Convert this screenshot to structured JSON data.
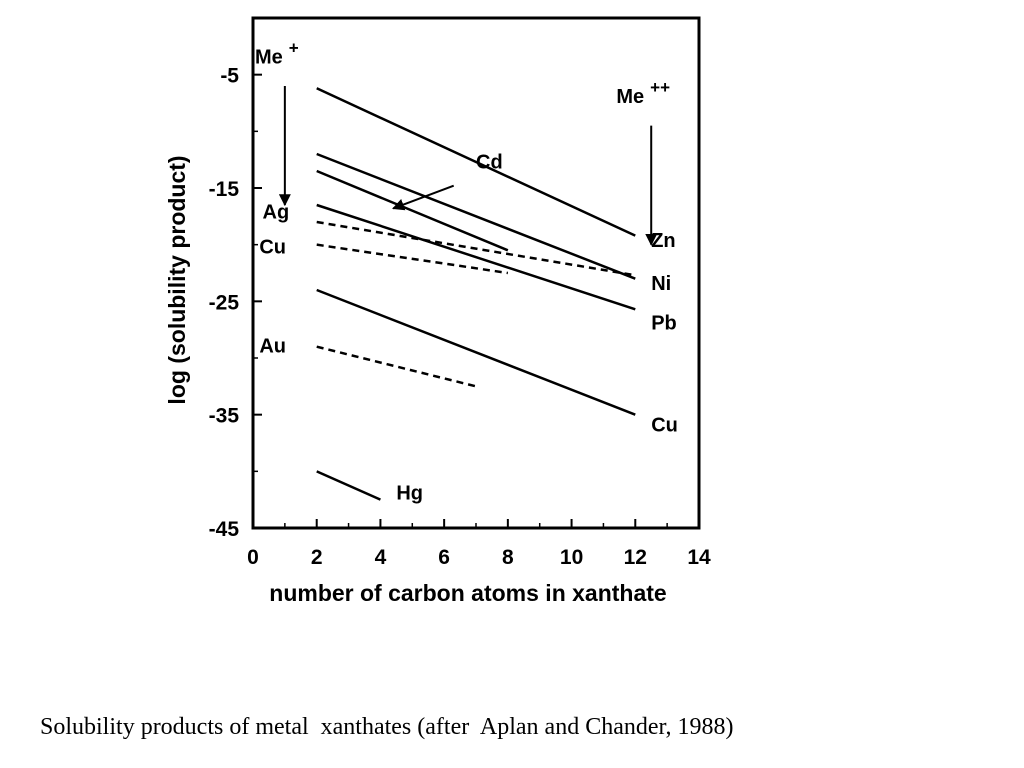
{
  "chart_data": {
    "type": "line",
    "xlabel": "number of carbon atoms in xanthate",
    "ylabel": "log (solubility product)",
    "xlim": [
      0,
      14
    ],
    "ylim": [
      -45,
      0
    ],
    "xticks": [
      0,
      2,
      4,
      6,
      8,
      10,
      12,
      14
    ],
    "yticks": [
      -5,
      -15,
      -25,
      -35,
      -45
    ],
    "grid": false,
    "group_labels": [
      {
        "id": "me1",
        "text": "Me",
        "sup": "+",
        "x": 1.0,
        "y": -4.0,
        "arrow": {
          "from": -6.0,
          "to": -16.5
        }
      },
      {
        "id": "me2",
        "text": "Me",
        "sup": "++",
        "x": 12.5,
        "y": -7.5,
        "arrow": {
          "from": -9.5,
          "to": -20.0
        }
      }
    ],
    "series": [
      {
        "name": "Zn",
        "style": "solid",
        "points": [
          [
            2,
            -6.2
          ],
          [
            12,
            -19.2
          ]
        ],
        "label_at": [
          12.5,
          -20.2
        ]
      },
      {
        "name": "Ni",
        "style": "solid",
        "points": [
          [
            2,
            -12.0
          ],
          [
            12,
            -23.0
          ]
        ],
        "label_at": [
          12.5,
          -24.0
        ]
      },
      {
        "name": "Cd",
        "style": "solid",
        "points": [
          [
            2,
            -13.5
          ],
          [
            8,
            -20.5
          ]
        ],
        "label_at": [
          7.0,
          -13.3
        ],
        "arrow": {
          "from": [
            6.3,
            -14.8
          ],
          "to": [
            4.4,
            -16.8
          ]
        }
      },
      {
        "name": "Pb",
        "style": "solid",
        "points": [
          [
            2,
            -16.5
          ],
          [
            12,
            -25.7
          ]
        ],
        "label_at": [
          12.5,
          -27.5
        ]
      },
      {
        "name": "Ag",
        "style": "dashed",
        "points": [
          [
            2,
            -18.0
          ],
          [
            12,
            -22.7
          ]
        ],
        "label_at": [
          0.3,
          -17.7
        ]
      },
      {
        "name": "Cu",
        "style": "dashed",
        "points": [
          [
            2,
            -20.0
          ],
          [
            8,
            -22.5
          ]
        ],
        "label_at": [
          0.2,
          -20.8
        ]
      },
      {
        "name": "Cu",
        "style": "solid",
        "points": [
          [
            2,
            -24.0
          ],
          [
            12,
            -35.0
          ]
        ],
        "label_at": [
          12.5,
          -36.5
        ]
      },
      {
        "name": "Au",
        "style": "dashed",
        "points": [
          [
            2,
            -29.0
          ],
          [
            7,
            -32.5
          ]
        ],
        "label_at": [
          0.2,
          -29.5
        ]
      },
      {
        "name": "Hg",
        "style": "solid",
        "points": [
          [
            2,
            -40.0
          ],
          [
            4,
            -42.5
          ]
        ],
        "label_at": [
          4.5,
          -42.5
        ]
      }
    ]
  },
  "caption": "Solubility products of metal  xanthates (after  Aplan and Chander, 1988)"
}
